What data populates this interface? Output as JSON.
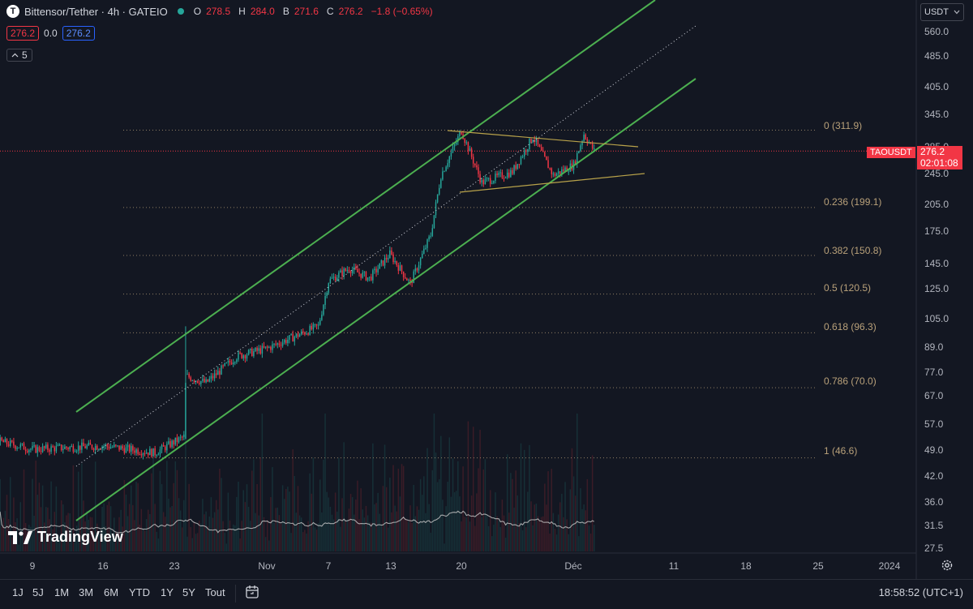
{
  "header": {
    "symbol_icon": "T",
    "title": "Bittensor/Tether · 4h · GATEIO",
    "ohlc": [
      {
        "key": "O",
        "value": "278.5"
      },
      {
        "key": "H",
        "value": "284.0"
      },
      {
        "key": "B",
        "value": "271.6"
      },
      {
        "key": "C",
        "value": "276.2"
      }
    ],
    "change": "−1.8 (−0.65%)",
    "bid": "276.2",
    "spread": "0.0",
    "ask": "276.2",
    "indicators_count": "5"
  },
  "currency": "USDT",
  "price_axis": [
    "560.0",
    "485.0",
    "405.0",
    "345.0",
    "285.0",
    "245.0",
    "205.0",
    "175.0",
    "145.0",
    "125.0",
    "105.0",
    "89.0",
    "77.0",
    "67.0",
    "57.0",
    "49.0",
    "42.0",
    "36.0",
    "31.5",
    "27.5"
  ],
  "date_axis": [
    "9",
    "16",
    "23",
    "Nov",
    "7",
    "13",
    "20",
    "Déc",
    "11",
    "18",
    "25",
    "2024"
  ],
  "fib_levels": [
    "0 (311.9)",
    "0.236 (199.1)",
    "0.382 (150.8)",
    "0.5 (120.5)",
    "0.618 (96.3)",
    "0.786 (70.0)",
    "1 (46.6)"
  ],
  "last_price": {
    "ticker": "TAOUSDT",
    "price": "276.2",
    "countdown": "02:01:08"
  },
  "brand": "TradingView",
  "time_ranges": [
    "1J",
    "5J",
    "1M",
    "3M",
    "6M",
    "YTD",
    "1Y",
    "5Y",
    "Tout"
  ],
  "clock": "18:58:52 (UTC+1)",
  "colors": {
    "background": "#131722",
    "up": "#26a69a",
    "down": "#f23645",
    "channel": "#4caf50",
    "fib": "#b9a17a",
    "triangle": "#b8a24a"
  },
  "icons": {
    "calendar": "calendar-icon",
    "settings": "gear-icon",
    "chevron": "chevron-up-icon"
  },
  "chart_data": {
    "type": "candlestick",
    "symbol": "Bittensor/Tether",
    "interval": "4h",
    "exchange": "GATEIO",
    "scale": "log",
    "ylim": [
      27.5,
      560.0
    ],
    "anchors": [
      {
        "date": "Oct 2",
        "close": 54
      },
      {
        "date": "Oct 9",
        "close": 49
      },
      {
        "date": "Oct 16",
        "close": 50
      },
      {
        "date": "Oct 21",
        "close": 48
      },
      {
        "date": "Oct 24",
        "close": 53
      },
      {
        "date": "Oct 24",
        "close": 75
      },
      {
        "date": "Oct 26",
        "close": 72
      },
      {
        "date": "Oct 29",
        "close": 84
      },
      {
        "date": "Nov 1",
        "close": 88
      },
      {
        "date": "Nov 4",
        "close": 95
      },
      {
        "date": "Nov 6",
        "close": 100
      },
      {
        "date": "Nov 7",
        "close": 130
      },
      {
        "date": "Nov 9",
        "close": 140
      },
      {
        "date": "Nov 11",
        "close": 132
      },
      {
        "date": "Nov 13",
        "close": 152
      },
      {
        "date": "Nov 15",
        "close": 128
      },
      {
        "date": "Nov 17",
        "close": 170
      },
      {
        "date": "Nov 18",
        "close": 240
      },
      {
        "date": "Nov 20",
        "close": 311
      },
      {
        "date": "Nov 22",
        "close": 230
      },
      {
        "date": "Nov 25",
        "close": 245
      },
      {
        "date": "Nov 27",
        "close": 300
      },
      {
        "date": "Nov 29",
        "close": 240
      },
      {
        "date": "Dec 1",
        "close": 255
      },
      {
        "date": "Dec 2",
        "close": 305
      },
      {
        "date": "Dec 3",
        "close": 276.2
      }
    ],
    "fibonacci": [
      {
        "ratio": 0,
        "price": 311.9
      },
      {
        "ratio": 0.236,
        "price": 199.1
      },
      {
        "ratio": 0.382,
        "price": 150.8
      },
      {
        "ratio": 0.5,
        "price": 120.5
      },
      {
        "ratio": 0.618,
        "price": 96.3
      },
      {
        "ratio": 0.786,
        "price": 70.0
      },
      {
        "ratio": 1,
        "price": 46.6
      }
    ],
    "drawings": [
      "ascending channel (upper, middle dotted, lower)",
      "symmetrical triangle"
    ],
    "volume": "histogram with moving average line"
  }
}
